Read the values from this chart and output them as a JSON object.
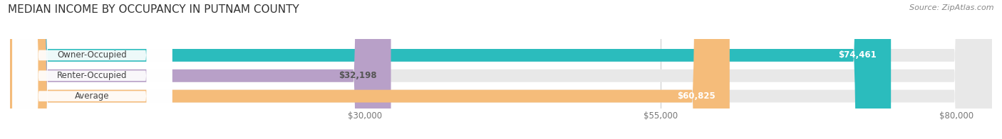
{
  "title": "MEDIAN INCOME BY OCCUPANCY IN PUTNAM COUNTY",
  "source": "Source: ZipAtlas.com",
  "categories": [
    "Owner-Occupied",
    "Renter-Occupied",
    "Average"
  ],
  "values": [
    74461,
    32198,
    60825
  ],
  "labels": [
    "$74,461",
    "$32,198",
    "$60,825"
  ],
  "bar_colors": [
    "#2bbcbd",
    "#b8a0c8",
    "#f5bc7a"
  ],
  "label_text_colors": [
    "#ffffff",
    "#555555",
    "#ffffff"
  ],
  "xlim": [
    0,
    83000
  ],
  "xticks": [
    30000,
    55000,
    80000
  ],
  "xticklabels": [
    "$30,000",
    "$55,000",
    "$80,000"
  ],
  "title_fontsize": 11,
  "source_fontsize": 8,
  "bar_label_fontsize": 8.5,
  "val_label_fontsize": 8.5,
  "background_color": "#ffffff",
  "bar_bg_color": "#e8e8e8",
  "bar_height": 0.62,
  "bar_spacing": 1.0,
  "label_box_color": "#ffffff",
  "grid_color": "#cccccc"
}
